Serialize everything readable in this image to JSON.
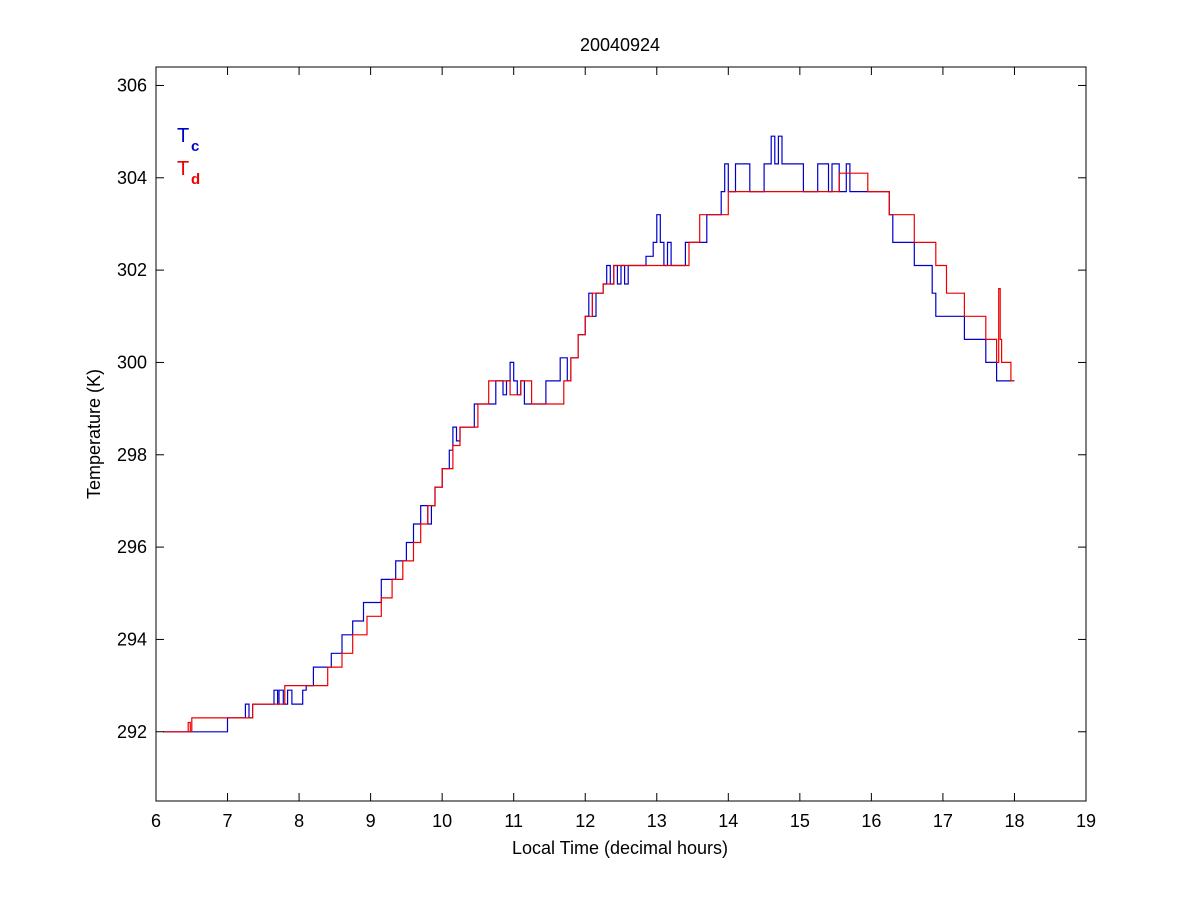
{
  "chart_data": {
    "type": "line",
    "title": "20040924",
    "xlabel": "Local Time (decimal hours)",
    "ylabel": "Temperature (K)",
    "xlim": [
      6,
      19
    ],
    "ylim": [
      290.5,
      306.4
    ],
    "xticks": [
      6,
      7,
      8,
      9,
      10,
      11,
      12,
      13,
      14,
      15,
      16,
      17,
      18,
      19
    ],
    "yticks": [
      292,
      294,
      296,
      298,
      300,
      302,
      304,
      306
    ],
    "grid": false,
    "legend_position": "top-left",
    "colors": {
      "Tc": "#0000cc",
      "Td": "#ee0000"
    },
    "legend": [
      {
        "main": "T",
        "sub": "c",
        "color": "#0000cc"
      },
      {
        "main": "T",
        "sub": "d",
        "color": "#ee0000"
      }
    ],
    "series": [
      {
        "name": "Tc",
        "color": "#0000cc",
        "step": true,
        "x": [
          6.1,
          6.45,
          6.5,
          7.0,
          7.2,
          7.25,
          7.3,
          7.35,
          7.55,
          7.65,
          7.7,
          7.72,
          7.78,
          7.84,
          7.9,
          8.05,
          8.1,
          8.2,
          8.3,
          8.45,
          8.6,
          8.75,
          8.9,
          9.05,
          9.15,
          9.25,
          9.35,
          9.45,
          9.5,
          9.55,
          9.6,
          9.65,
          9.7,
          9.75,
          9.8,
          9.85,
          9.9,
          9.95,
          10.0,
          10.1,
          10.15,
          10.2,
          10.25,
          10.3,
          10.45,
          10.6,
          10.75,
          10.85,
          10.9,
          10.95,
          11.0,
          11.05,
          11.1,
          11.15,
          11.3,
          11.45,
          11.65,
          11.75,
          11.8,
          11.85,
          11.9,
          11.95,
          12.0,
          12.05,
          12.1,
          12.15,
          12.2,
          12.25,
          12.3,
          12.35,
          12.4,
          12.45,
          12.5,
          12.55,
          12.6,
          12.7,
          12.85,
          12.95,
          13.0,
          13.05,
          13.1,
          13.15,
          13.2,
          13.35,
          13.4,
          13.5,
          13.7,
          13.75,
          13.9,
          13.95,
          14.0,
          14.05,
          14.1,
          14.25,
          14.3,
          14.35,
          14.5,
          14.6,
          14.65,
          14.7,
          14.75,
          14.8,
          15.05,
          15.2,
          15.25,
          15.3,
          15.4,
          15.45,
          15.5,
          15.55,
          15.6,
          15.65,
          15.7,
          15.75,
          16.25,
          16.3,
          16.6,
          16.85,
          16.9,
          17.05,
          17.3,
          17.6,
          17.65,
          17.75,
          17.8,
          18.0
        ],
        "y": [
          292.0,
          292.0,
          292.0,
          292.3,
          292.3,
          292.6,
          292.3,
          292.6,
          292.6,
          292.9,
          292.6,
          292.9,
          292.6,
          292.9,
          292.6,
          292.9,
          293.0,
          293.4,
          293.4,
          293.7,
          294.1,
          294.4,
          294.8,
          294.8,
          295.3,
          295.3,
          295.7,
          295.7,
          296.1,
          296.1,
          296.5,
          296.5,
          296.9,
          296.9,
          296.5,
          296.9,
          297.3,
          297.3,
          297.7,
          298.1,
          298.6,
          298.3,
          298.6,
          298.6,
          299.1,
          299.1,
          299.6,
          299.3,
          299.6,
          300.0,
          299.6,
          299.3,
          299.6,
          299.1,
          299.1,
          299.6,
          300.1,
          299.6,
          300.1,
          300.1,
          300.6,
          300.6,
          301.0,
          301.5,
          301.0,
          301.5,
          301.5,
          301.7,
          302.1,
          301.7,
          302.1,
          301.7,
          302.1,
          301.7,
          302.1,
          302.1,
          302.3,
          302.6,
          303.2,
          302.6,
          302.1,
          302.6,
          302.1,
          302.1,
          302.6,
          302.6,
          303.2,
          303.2,
          303.7,
          304.3,
          303.7,
          303.7,
          304.3,
          304.3,
          303.7,
          303.7,
          304.3,
          304.9,
          304.3,
          304.9,
          304.3,
          304.3,
          303.7,
          303.7,
          304.3,
          304.3,
          303.7,
          304.3,
          304.3,
          303.7,
          303.7,
          304.3,
          303.7,
          303.7,
          303.2,
          302.6,
          302.1,
          301.5,
          301.0,
          301.0,
          300.5,
          300.0,
          300.0,
          299.6,
          299.6,
          299.6
        ]
      },
      {
        "name": "Td",
        "color": "#ee0000",
        "step": true,
        "x": [
          6.1,
          6.45,
          6.48,
          6.5,
          6.55,
          7.1,
          7.35,
          7.75,
          7.8,
          8.2,
          8.4,
          8.6,
          8.75,
          8.95,
          9.15,
          9.3,
          9.45,
          9.6,
          9.7,
          9.8,
          9.9,
          10.0,
          10.15,
          10.25,
          10.35,
          10.5,
          10.65,
          10.8,
          10.95,
          11.1,
          11.15,
          11.25,
          11.7,
          11.8,
          11.9,
          12.0,
          12.1,
          12.25,
          12.4,
          12.6,
          13.3,
          13.45,
          13.6,
          13.85,
          14.0,
          14.75,
          14.85,
          15.5,
          15.55,
          15.95,
          16.25,
          16.6,
          16.9,
          17.05,
          17.3,
          17.6,
          17.75,
          17.78,
          17.8,
          17.82,
          17.85,
          17.95,
          18.0
        ],
        "y": [
          292.0,
          292.2,
          292.0,
          292.3,
          292.3,
          292.3,
          292.6,
          292.6,
          293.0,
          293.0,
          293.4,
          293.7,
          294.1,
          294.5,
          294.9,
          295.3,
          295.7,
          296.1,
          296.5,
          296.9,
          297.3,
          297.7,
          298.2,
          298.6,
          298.6,
          299.1,
          299.6,
          299.6,
          299.3,
          299.6,
          299.6,
          299.1,
          299.6,
          300.1,
          300.6,
          301.0,
          301.5,
          301.7,
          302.1,
          302.1,
          302.1,
          302.6,
          303.2,
          303.2,
          303.7,
          303.7,
          303.7,
          303.7,
          304.1,
          303.7,
          303.2,
          302.6,
          302.1,
          301.5,
          301.0,
          300.5,
          300.0,
          301.6,
          300.5,
          300.0,
          300.0,
          299.6,
          299.6
        ]
      }
    ]
  }
}
